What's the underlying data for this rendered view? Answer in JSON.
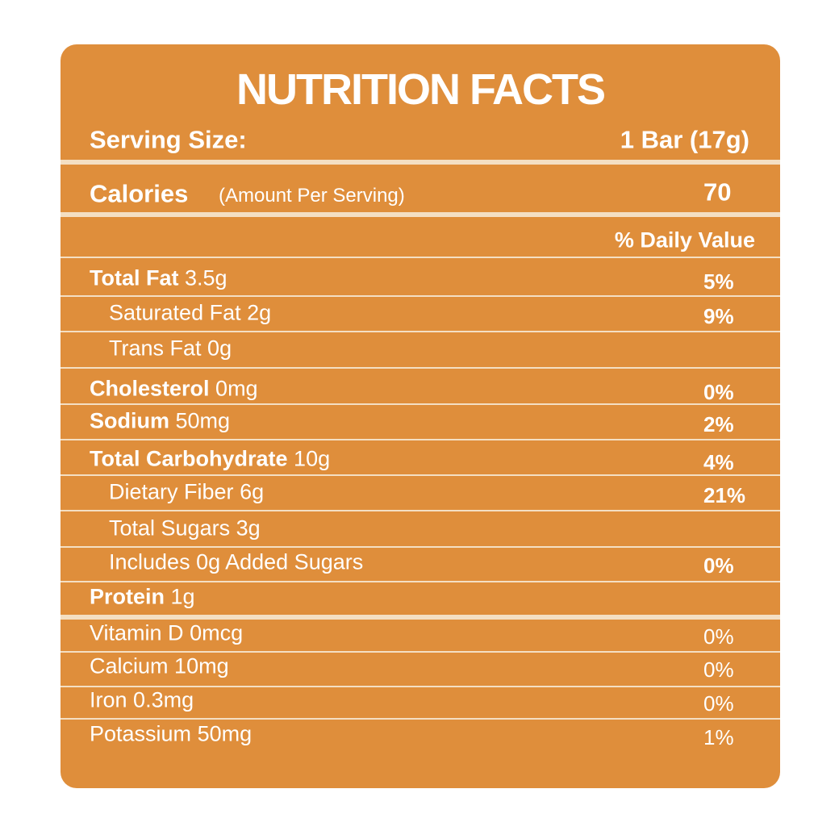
{
  "title": "NUTRITION FACTS",
  "serving": {
    "label": "Serving Size:",
    "value": "1 Bar (17g)"
  },
  "calories": {
    "label": "Calories",
    "note": "(Amount Per Serving)",
    "value": "70"
  },
  "daily_value_header": "% Daily Value",
  "rows": [
    {
      "name": "Total Fat",
      "amount": "3.5g",
      "dv": "5%"
    },
    {
      "name": "Saturated Fat",
      "amount": "2g",
      "dv": "9%"
    },
    {
      "name": "Trans Fat",
      "amount": "0g"
    },
    {
      "name": "Cholesterol",
      "amount": "0mg",
      "dv": "0%"
    },
    {
      "name": "Sodium",
      "amount": "50mg",
      "dv": "2%"
    },
    {
      "name": "Total Carbohydrate",
      "amount": "10g",
      "dv": "4%"
    },
    {
      "name": "Dietary Fiber",
      "amount": "6g",
      "dv": "21%"
    },
    {
      "name": "Total Sugars",
      "amount": "3g"
    },
    {
      "name": "Includes 0g Added Sugars",
      "dv": "0%"
    },
    {
      "name": "Protein",
      "amount": "1g"
    },
    {
      "name": "Vitamin D",
      "amount": "0mcg",
      "dv": "0%"
    },
    {
      "name": "Calcium",
      "amount": "10mg",
      "dv": "0%"
    },
    {
      "name": "Iron",
      "amount": "0.3mg",
      "dv": "0%"
    },
    {
      "name": "Potassium",
      "amount": "50mg",
      "dv": "1%"
    }
  ]
}
